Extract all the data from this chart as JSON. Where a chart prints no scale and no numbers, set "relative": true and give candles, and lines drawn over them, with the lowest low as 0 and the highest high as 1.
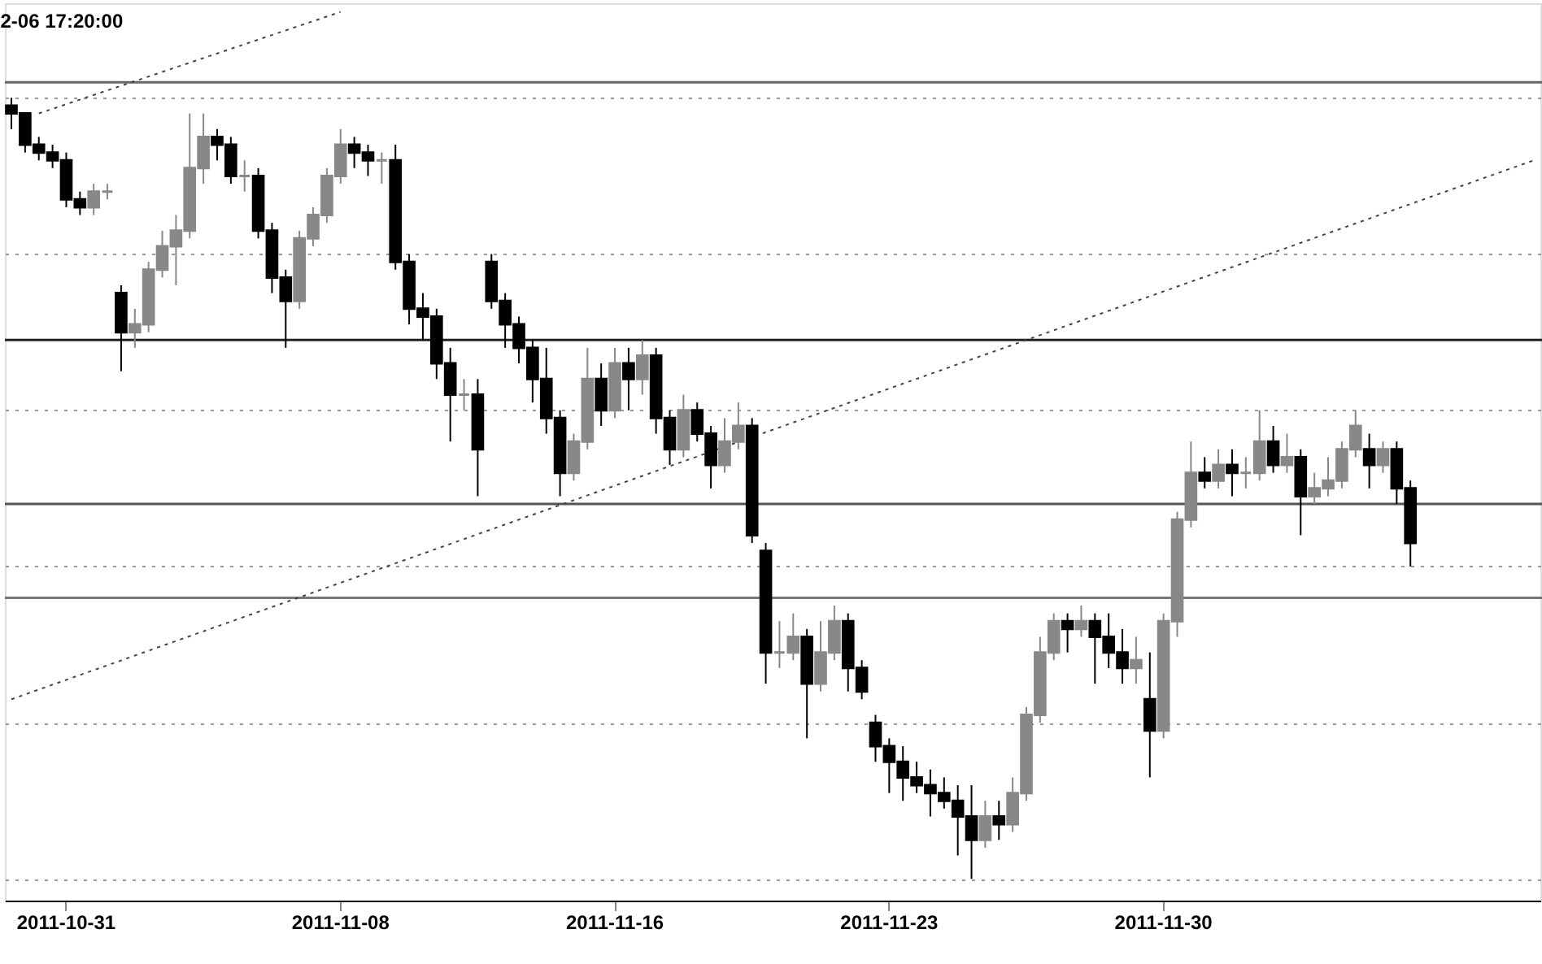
{
  "chart_data": {
    "type": "candlestick",
    "title": "2-06 17:20:00",
    "relative": true,
    "grid": "y",
    "categories": [
      null,
      null,
      null,
      null,
      "2011-10-31",
      null,
      null,
      null,
      null,
      null,
      null,
      null,
      null,
      null,
      null,
      null,
      null,
      null,
      null,
      null,
      null,
      null,
      null,
      null,
      "2011-11-08",
      null,
      null,
      null,
      null,
      null,
      null,
      null,
      null,
      null,
      null,
      null,
      null,
      null,
      null,
      null,
      null,
      null,
      null,
      null,
      "2011-11-16",
      null,
      null,
      null,
      null,
      null,
      null,
      null,
      null,
      null,
      null,
      null,
      null,
      null,
      null,
      null,
      null,
      null,
      null,
      null,
      "2011-11-23",
      null,
      null,
      null,
      null,
      null,
      null,
      null,
      null,
      null,
      null,
      null,
      null,
      null,
      null,
      null,
      null,
      null,
      null,
      null,
      "2011-11-30",
      null,
      null,
      null,
      null,
      null,
      null,
      null,
      null,
      null,
      null,
      null,
      null,
      null,
      null,
      null,
      null,
      null,
      null,
      null,
      null,
      null,
      null,
      null,
      null,
      null,
      null,
      null
    ],
    "ohlc": [
      [
        0.99,
        1.0,
        0.96,
        0.98
      ],
      [
        0.98,
        0.98,
        0.93,
        0.94
      ],
      [
        0.94,
        0.95,
        0.92,
        0.93
      ],
      [
        0.93,
        0.94,
        0.91,
        0.92
      ],
      [
        0.92,
        0.93,
        0.86,
        0.87
      ],
      [
        0.87,
        0.88,
        0.85,
        0.86
      ],
      [
        0.86,
        0.89,
        0.85,
        0.88
      ],
      [
        0.88,
        0.89,
        0.87,
        0.88
      ],
      [
        0.75,
        0.76,
        0.65,
        0.7
      ],
      [
        0.7,
        0.73,
        0.68,
        0.71
      ],
      [
        0.71,
        0.79,
        0.7,
        0.78
      ],
      [
        0.78,
        0.83,
        0.77,
        0.81
      ],
      [
        0.81,
        0.85,
        0.76,
        0.83
      ],
      [
        0.83,
        0.98,
        0.82,
        0.91
      ],
      [
        0.91,
        0.98,
        0.89,
        0.95
      ],
      [
        0.95,
        0.96,
        0.92,
        0.94
      ],
      [
        0.94,
        0.95,
        0.89,
        0.9
      ],
      [
        0.9,
        0.92,
        0.88,
        0.9
      ],
      [
        0.9,
        0.91,
        0.82,
        0.83
      ],
      [
        0.83,
        0.84,
        0.75,
        0.77
      ],
      [
        0.77,
        0.78,
        0.68,
        0.74
      ],
      [
        0.74,
        0.83,
        0.73,
        0.82
      ],
      [
        0.82,
        0.86,
        0.81,
        0.85
      ],
      [
        0.85,
        0.91,
        0.84,
        0.9
      ],
      [
        0.9,
        0.96,
        0.89,
        0.94
      ],
      [
        0.94,
        0.95,
        0.91,
        0.93
      ],
      [
        0.93,
        0.94,
        0.9,
        0.92
      ],
      [
        0.92,
        0.93,
        0.89,
        0.92
      ],
      [
        0.92,
        0.94,
        0.78,
        0.79
      ],
      [
        0.79,
        0.8,
        0.71,
        0.73
      ],
      [
        0.73,
        0.75,
        0.69,
        0.72
      ],
      [
        0.72,
        0.73,
        0.64,
        0.66
      ],
      [
        0.66,
        0.68,
        0.56,
        0.62
      ],
      [
        0.62,
        0.64,
        0.6,
        0.62
      ],
      [
        0.62,
        0.64,
        0.49,
        0.55
      ],
      [
        0.79,
        0.8,
        0.73,
        0.74
      ],
      [
        0.74,
        0.75,
        0.68,
        0.71
      ],
      [
        0.71,
        0.72,
        0.66,
        0.68
      ],
      [
        0.68,
        0.69,
        0.61,
        0.64
      ],
      [
        0.64,
        0.68,
        0.57,
        0.59
      ],
      [
        0.59,
        0.6,
        0.49,
        0.52
      ],
      [
        0.52,
        0.57,
        0.51,
        0.56
      ],
      [
        0.56,
        0.68,
        0.55,
        0.64
      ],
      [
        0.64,
        0.66,
        0.58,
        0.6
      ],
      [
        0.6,
        0.68,
        0.59,
        0.66
      ],
      [
        0.66,
        0.68,
        0.6,
        0.64
      ],
      [
        0.64,
        0.69,
        0.62,
        0.67
      ],
      [
        0.67,
        0.68,
        0.57,
        0.59
      ],
      [
        0.59,
        0.6,
        0.53,
        0.55
      ],
      [
        0.55,
        0.62,
        0.54,
        0.6
      ],
      [
        0.6,
        0.61,
        0.56,
        0.57
      ],
      [
        0.57,
        0.58,
        0.5,
        0.53
      ],
      [
        0.53,
        0.59,
        0.52,
        0.56
      ],
      [
        0.56,
        0.61,
        0.55,
        0.58
      ],
      [
        0.58,
        0.59,
        0.43,
        0.44
      ],
      [
        0.42,
        0.43,
        0.25,
        0.29
      ],
      [
        0.29,
        0.33,
        0.27,
        0.29
      ],
      [
        0.29,
        0.34,
        0.28,
        0.31
      ],
      [
        0.31,
        0.32,
        0.18,
        0.25
      ],
      [
        0.25,
        0.33,
        0.24,
        0.29
      ],
      [
        0.29,
        0.35,
        0.28,
        0.33
      ],
      [
        0.33,
        0.34,
        0.24,
        0.27
      ],
      [
        0.27,
        0.28,
        0.23,
        0.24
      ],
      [
        0.2,
        0.21,
        0.15,
        0.17
      ],
      [
        0.17,
        0.18,
        0.11,
        0.15
      ],
      [
        0.15,
        0.17,
        0.1,
        0.13
      ],
      [
        0.13,
        0.15,
        0.11,
        0.12
      ],
      [
        0.12,
        0.14,
        0.08,
        0.11
      ],
      [
        0.11,
        0.13,
        0.09,
        0.1
      ],
      [
        0.1,
        0.12,
        0.03,
        0.08
      ],
      [
        0.08,
        0.12,
        0.0,
        0.05
      ],
      [
        0.05,
        0.1,
        0.04,
        0.08
      ],
      [
        0.08,
        0.1,
        0.05,
        0.07
      ],
      [
        0.07,
        0.13,
        0.06,
        0.11
      ],
      [
        0.11,
        0.22,
        0.1,
        0.21
      ],
      [
        0.21,
        0.31,
        0.2,
        0.29
      ],
      [
        0.29,
        0.34,
        0.28,
        0.33
      ],
      [
        0.33,
        0.34,
        0.29,
        0.32
      ],
      [
        0.32,
        0.35,
        0.31,
        0.33
      ],
      [
        0.33,
        0.34,
        0.25,
        0.31
      ],
      [
        0.31,
        0.34,
        0.27,
        0.29
      ],
      [
        0.29,
        0.32,
        0.25,
        0.27
      ],
      [
        0.27,
        0.31,
        0.25,
        0.28
      ],
      [
        0.23,
        0.29,
        0.13,
        0.19
      ],
      [
        0.19,
        0.34,
        0.18,
        0.33
      ],
      [
        0.33,
        0.47,
        0.31,
        0.46
      ],
      [
        0.46,
        0.56,
        0.45,
        0.52
      ],
      [
        0.52,
        0.54,
        0.5,
        0.51
      ],
      [
        0.51,
        0.55,
        0.5,
        0.53
      ],
      [
        0.53,
        0.55,
        0.49,
        0.52
      ],
      [
        0.52,
        0.54,
        0.5,
        0.52
      ],
      [
        0.52,
        0.6,
        0.51,
        0.56
      ],
      [
        0.56,
        0.58,
        0.52,
        0.53
      ],
      [
        0.53,
        0.57,
        0.52,
        0.54
      ],
      [
        0.54,
        0.55,
        0.44,
        0.49
      ],
      [
        0.49,
        0.52,
        0.48,
        0.5
      ],
      [
        0.5,
        0.54,
        0.49,
        0.51
      ],
      [
        0.51,
        0.56,
        0.5,
        0.55
      ],
      [
        0.55,
        0.6,
        0.54,
        0.58
      ],
      [
        0.55,
        0.57,
        0.5,
        0.53
      ],
      [
        0.53,
        0.56,
        0.52,
        0.55
      ],
      [
        0.55,
        0.56,
        0.48,
        0.5
      ],
      [
        0.5,
        0.51,
        0.4,
        0.43
      ],
      null,
      null,
      null,
      null,
      null,
      null,
      null,
      null,
      null
    ],
    "series": [
      {
        "type": "line",
        "color": "#444444",
        "line_style": "dotted",
        "values": [
          null,
          null,
          0.98,
          null,
          null,
          null,
          null,
          null,
          null,
          null,
          null,
          null,
          null,
          null,
          null,
          null,
          null,
          null,
          null,
          null,
          null,
          null,
          null,
          null,
          1.11,
          null,
          null,
          null,
          null,
          null,
          null,
          null,
          null,
          null,
          null,
          null,
          null,
          null,
          null,
          null,
          null,
          null,
          null,
          null,
          null,
          null,
          null,
          null,
          null,
          null,
          null,
          null,
          null,
          null,
          null,
          null,
          null,
          null,
          null,
          null,
          null,
          null,
          null,
          null,
          null,
          null,
          null,
          null,
          null,
          null,
          null,
          null,
          null,
          null,
          null,
          null,
          null,
          null,
          null,
          null,
          null,
          null,
          null,
          null,
          null,
          null,
          null,
          null,
          null,
          null,
          null,
          null,
          null,
          null,
          null,
          null,
          null,
          null,
          null,
          null,
          null,
          null,
          null,
          null,
          null,
          null,
          null,
          null,
          null,
          null,
          null,
          null
        ]
      },
      {
        "type": "line",
        "color": "#444444",
        "line_style": "dotted",
        "values": [
          0.23,
          null,
          null,
          null,
          null,
          null,
          null,
          null,
          null,
          null,
          null,
          null,
          null,
          null,
          null,
          null,
          null,
          null,
          null,
          null,
          null,
          null,
          null,
          null,
          null,
          null,
          null,
          null,
          null,
          null,
          null,
          null,
          null,
          null,
          null,
          null,
          null,
          null,
          null,
          null,
          null,
          null,
          null,
          null,
          null,
          null,
          null,
          null,
          null,
          null,
          null,
          null,
          null,
          null,
          null,
          null,
          null,
          null,
          null,
          null,
          null,
          null,
          null,
          null,
          null,
          null,
          null,
          null,
          null,
          null,
          null,
          null,
          null,
          null,
          null,
          null,
          null,
          null,
          null,
          null,
          null,
          null,
          null,
          null,
          null,
          null,
          null,
          null,
          null,
          null,
          null,
          null,
          null,
          null,
          null,
          null,
          null,
          null,
          null,
          null,
          null,
          null,
          null,
          null,
          null,
          null,
          null,
          null,
          null,
          null,
          null,
          0.92
        ]
      }
    ],
    "ref_lines": [
      {
        "axis": "y",
        "value": 1.02,
        "color": "#666666"
      },
      {
        "axis": "y",
        "value": 0.69,
        "color": "#222222"
      },
      {
        "axis": "y",
        "value": 0.48,
        "color": "#555555"
      },
      {
        "axis": "y",
        "value": 0.36,
        "color": "#777777"
      }
    ]
  }
}
